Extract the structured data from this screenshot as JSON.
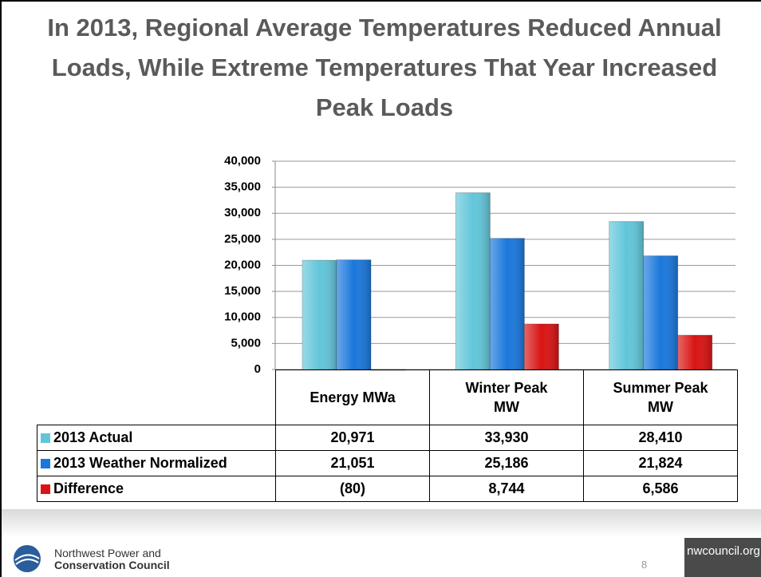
{
  "chart_data": {
    "type": "bar",
    "title": "In 2013, Regional Average Temperatures Reduced Annual Loads, While Extreme Temperatures That Year Increased Peak Loads",
    "categories": [
      "Energy MWa",
      "Winter Peak MW",
      "Summer Peak MW"
    ],
    "series": [
      {
        "name": "2013 Actual",
        "color": "#62c6da",
        "values": [
          20971,
          33930,
          28410
        ],
        "value_labels": [
          "20,971",
          "33,930",
          "28,410"
        ]
      },
      {
        "name": "2013 Weather Normalized",
        "color": "#1a78dc",
        "values": [
          21051,
          25186,
          21824
        ],
        "value_labels": [
          "21,051",
          "25,186",
          "21,824"
        ]
      },
      {
        "name": "Difference",
        "color": "#d81414",
        "values": [
          -80,
          8744,
          6586
        ],
        "value_labels": [
          "(80)",
          "8,744",
          "6,586"
        ]
      }
    ],
    "ylim": [
      0,
      40000
    ],
    "yticks": [
      0,
      {
        "value": 5000,
        "label": "5,000"
      },
      {
        "value": 10000,
        "label": "10,000"
      },
      {
        "value": 15000,
        "label": "15,000"
      },
      {
        "value": 20000,
        "label": "20,000"
      },
      {
        "value": 25000,
        "label": "25,000"
      },
      {
        "value": 30000,
        "label": "30,000"
      },
      {
        "value": 35000,
        "label": "35,000"
      },
      {
        "value": 40000,
        "label": "40,000"
      }
    ],
    "grid": true
  },
  "footer": {
    "org_line1": "Northwest Power and",
    "org_line2": "Conservation Council",
    "page": "8",
    "site": "nwcouncil.org"
  }
}
